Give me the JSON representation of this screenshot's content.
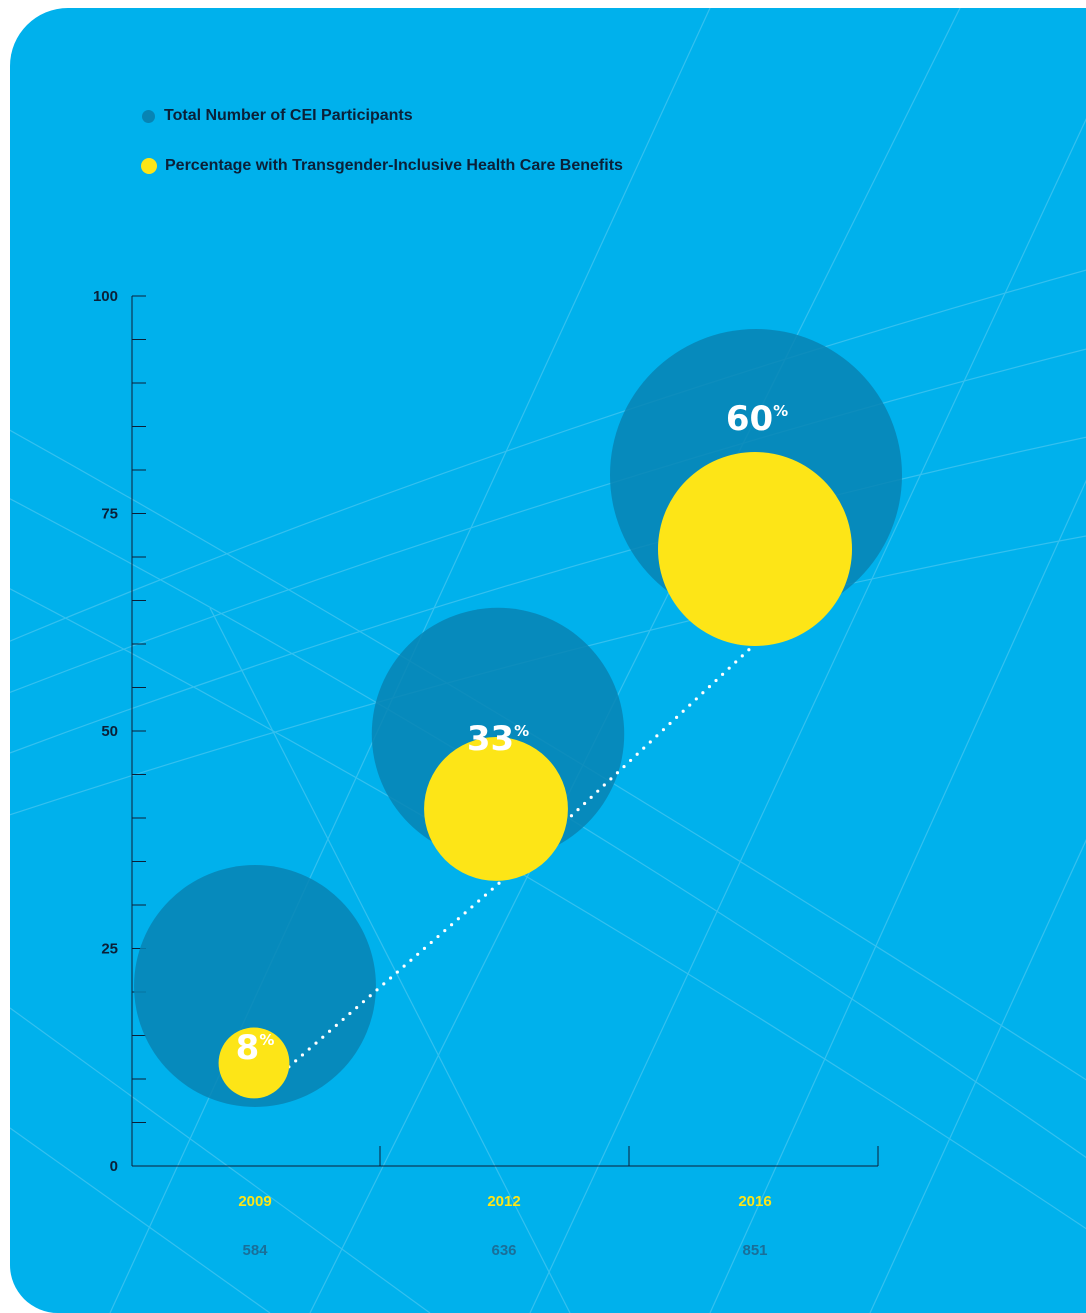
{
  "colors": {
    "background": "#00b1ec",
    "total_bubble": "#0784b4",
    "percentage_bubble": "#fde517",
    "axis": "#0b2038",
    "year_text": "#fde517",
    "count_text": "#1a6f99",
    "trend_line": "#ffffff"
  },
  "legend": {
    "total_label": "Total Number of CEI Participants",
    "percentage_label": "Percentage with Transgender-Inclusive Health Care Benefits"
  },
  "chart_data": {
    "type": "bubble",
    "title": "",
    "xlabel": "",
    "ylabel": "",
    "ylim": [
      0,
      100
    ],
    "yticks": [
      "0",
      "25",
      "50",
      "75",
      "100"
    ],
    "categories": [
      "2009",
      "2012",
      "2016"
    ],
    "series": [
      {
        "name": "Total Number of CEI Participants",
        "values": [
          584,
          636,
          851
        ]
      },
      {
        "name": "Percentage with Transgender-Inclusive Health Care Benefits",
        "values": [
          8,
          33,
          60
        ]
      }
    ],
    "value_labels": [
      "8",
      "33",
      "60"
    ],
    "percent_symbol": "%",
    "count_labels": [
      "584",
      "636",
      "851"
    ],
    "grid": false,
    "legend_position": "top-left",
    "trend_line": "dotted"
  }
}
